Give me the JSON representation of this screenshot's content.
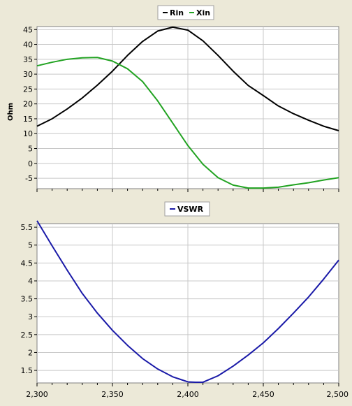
{
  "colors": {
    "background": "#ece9d8",
    "plot_bg": "#ffffff",
    "grid": "#c8c8c8",
    "rin": "#000000",
    "xin": "#22a322",
    "vswr": "#1a1aa8"
  },
  "chart_data": [
    {
      "type": "line",
      "title": "",
      "xlabel": "",
      "ylabel": "Ohm",
      "legend_position": "top-center",
      "grid": true,
      "xlim": [
        2300,
        2500
      ],
      "ylim": [
        -8.5,
        46
      ],
      "y_ticks": [
        "45",
        "40",
        "35",
        "30",
        "25",
        "20",
        "15",
        "10",
        "5",
        "0",
        "-5"
      ],
      "series": [
        {
          "name": "Rin",
          "color": "#000000",
          "x": [
            2300,
            2310,
            2320,
            2330,
            2340,
            2350,
            2360,
            2370,
            2380,
            2390,
            2400,
            2410,
            2420,
            2430,
            2440,
            2450,
            2460,
            2470,
            2480,
            2490,
            2500
          ],
          "y": [
            12.5,
            15.0,
            18.3,
            22.0,
            26.3,
            31.0,
            36.3,
            41.0,
            44.5,
            45.8,
            44.8,
            41.2,
            36.3,
            31.0,
            26.2,
            22.8,
            19.3,
            16.7,
            14.5,
            12.5,
            11.0
          ]
        },
        {
          "name": "Xin",
          "color": "#22a322",
          "x": [
            2300,
            2310,
            2320,
            2330,
            2340,
            2350,
            2360,
            2370,
            2380,
            2390,
            2400,
            2410,
            2420,
            2430,
            2440,
            2450,
            2460,
            2470,
            2480,
            2490,
            2500
          ],
          "y": [
            32.8,
            34.0,
            35.0,
            35.5,
            35.6,
            34.4,
            31.8,
            27.5,
            21.0,
            13.5,
            6.0,
            -0.3,
            -4.8,
            -7.3,
            -8.3,
            -8.3,
            -8.0,
            -7.2,
            -6.5,
            -5.6,
            -4.8
          ]
        }
      ]
    },
    {
      "type": "line",
      "title": "",
      "xlabel": "",
      "ylabel": "",
      "legend_position": "top-center",
      "grid": true,
      "xlim": [
        2300,
        2500
      ],
      "ylim": [
        1.15,
        5.6
      ],
      "y_ticks": [
        "5.5",
        "5",
        "4.5",
        "4",
        "3.5",
        "3",
        "2.5",
        "2",
        "1.5"
      ],
      "x_ticks": [
        "2,300",
        "2,350",
        "2,400",
        "2,450",
        "2,500"
      ],
      "series": [
        {
          "name": "VSWR",
          "color": "#1a1aa8",
          "x": [
            2300,
            2310,
            2320,
            2330,
            2340,
            2350,
            2360,
            2370,
            2380,
            2390,
            2395,
            2400,
            2405,
            2410,
            2420,
            2430,
            2440,
            2450,
            2460,
            2470,
            2480,
            2490,
            2500
          ],
          "y": [
            5.68,
            4.98,
            4.3,
            3.65,
            3.1,
            2.62,
            2.2,
            1.83,
            1.54,
            1.32,
            1.25,
            1.18,
            1.17,
            1.17,
            1.35,
            1.62,
            1.93,
            2.27,
            2.67,
            3.1,
            3.55,
            4.05,
            4.58
          ]
        }
      ]
    }
  ]
}
